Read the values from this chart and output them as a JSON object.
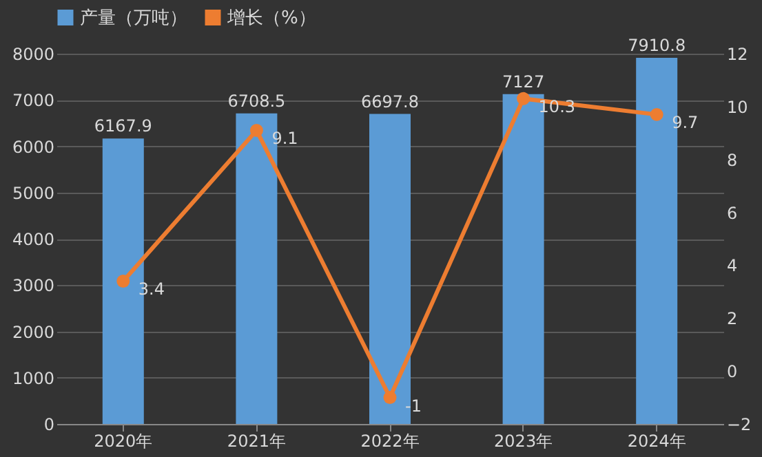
{
  "chart_data": {
    "type": "bar",
    "categories": [
      "2020年",
      "2021年",
      "2022年",
      "2023年",
      "2024年"
    ],
    "series": [
      {
        "name": "产量（万吨）",
        "color": "#5b9bd5",
        "values": [
          6167.9,
          6708.5,
          6697.8,
          7127,
          7910.8
        ]
      },
      {
        "name": "增长（%）",
        "type": "line",
        "axis": "y2",
        "color": "#ed7d31",
        "values": [
          3.4,
          9.1,
          -1,
          10.3,
          9.7
        ]
      }
    ],
    "ylim": [
      0,
      8000
    ],
    "yticks": [
      0,
      1000,
      2000,
      3000,
      4000,
      5000,
      6000,
      7000,
      8000
    ],
    "y2lim": [
      -2,
      12
    ],
    "y2ticks": [
      -2,
      0,
      2,
      4,
      6,
      8,
      10,
      12
    ],
    "data_labels": true,
    "legend": "top",
    "grid": "y",
    "marker": "circle"
  }
}
